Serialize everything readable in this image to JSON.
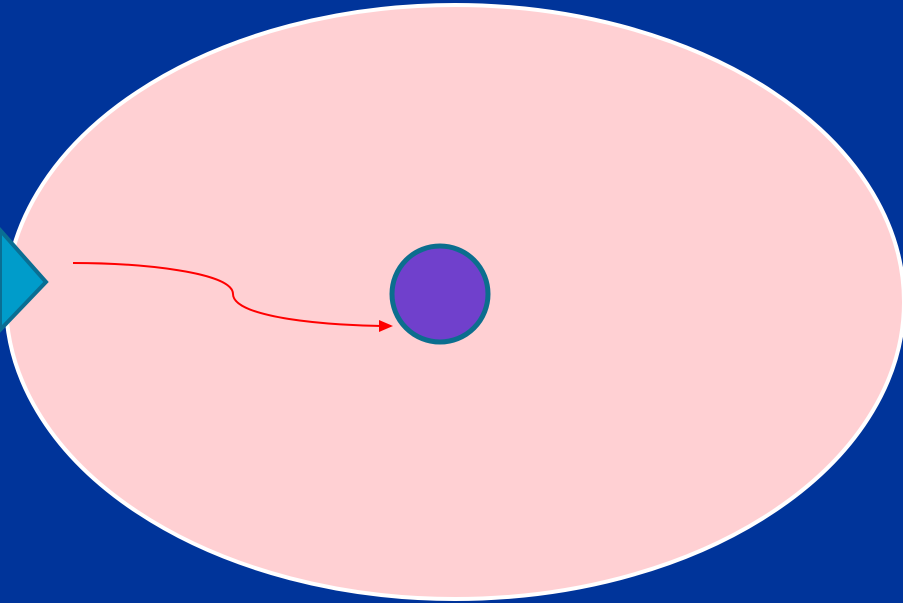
{
  "colors": {
    "background": "#00349A",
    "ellipse_fill": "#FFD0D3",
    "ellipse_stroke": "#FFFFFF",
    "diamond_fill": "#009CCA",
    "diamond_stroke": "#0A6E93",
    "circle_fill": "#7040CC",
    "circle_stroke": "#0B6E8E",
    "arrow_color": "#FF0000"
  },
  "shapes": {
    "ellipse": "large-oval",
    "diamond": "diamond-pointer",
    "circle": "target-circle",
    "arrow": "curved-arrow"
  }
}
